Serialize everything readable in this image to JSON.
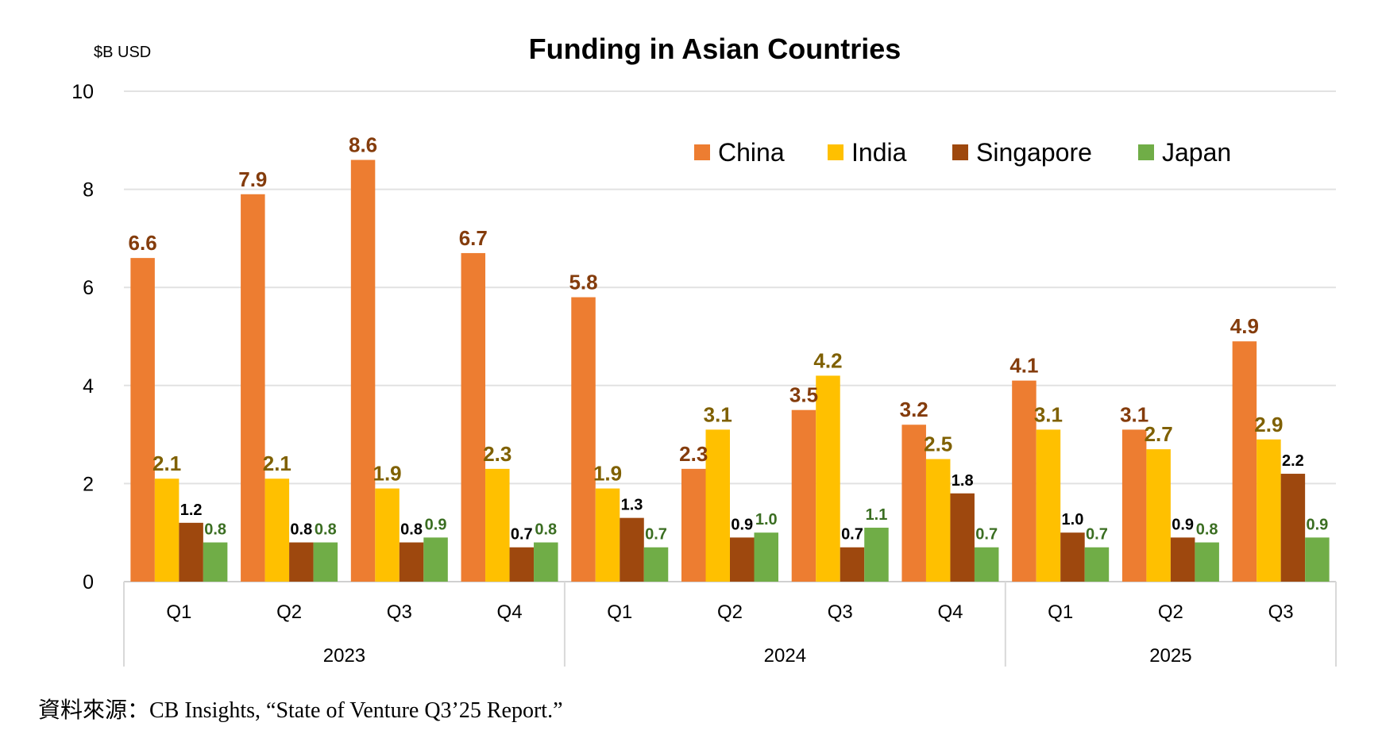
{
  "chart_data": {
    "type": "bar",
    "title": "Funding in Asian Countries",
    "ylabel": "$B USD",
    "ylim": [
      0,
      10
    ],
    "yticks": [
      0,
      2,
      4,
      6,
      8,
      10
    ],
    "grid": true,
    "legend_position": "top-right",
    "categories": [
      {
        "quarter": "Q1",
        "year": "2023"
      },
      {
        "quarter": "Q2",
        "year": "2023"
      },
      {
        "quarter": "Q3",
        "year": "2023"
      },
      {
        "quarter": "Q4",
        "year": "2023"
      },
      {
        "quarter": "Q1",
        "year": "2024"
      },
      {
        "quarter": "Q2",
        "year": "2024"
      },
      {
        "quarter": "Q3",
        "year": "2024"
      },
      {
        "quarter": "Q4",
        "year": "2024"
      },
      {
        "quarter": "Q1",
        "year": "2025"
      },
      {
        "quarter": "Q2",
        "year": "2025"
      },
      {
        "quarter": "Q3",
        "year": "2025"
      }
    ],
    "years": [
      "2023",
      "2024",
      "2025"
    ],
    "series": [
      {
        "name": "China",
        "color": "#ED7D31",
        "label_color": "#843C0C",
        "values": [
          6.6,
          7.9,
          8.6,
          6.7,
          5.8,
          2.3,
          3.5,
          3.2,
          4.1,
          3.1,
          4.9
        ]
      },
      {
        "name": "India",
        "color": "#FFC000",
        "label_color": "#7F6000",
        "values": [
          2.1,
          2.1,
          1.9,
          2.3,
          1.9,
          3.1,
          4.2,
          2.5,
          3.1,
          2.7,
          2.9
        ]
      },
      {
        "name": "Singapore",
        "color": "#9E480E",
        "label_color": "#000000",
        "values": [
          1.2,
          0.8,
          0.8,
          0.7,
          1.3,
          0.9,
          0.7,
          1.8,
          1.0,
          0.9,
          2.2
        ]
      },
      {
        "name": "Japan",
        "color": "#70AD47",
        "label_color": "#3B6E22",
        "values": [
          0.8,
          0.8,
          0.9,
          0.8,
          0.7,
          1.0,
          1.1,
          0.7,
          0.7,
          0.8,
          0.9
        ]
      }
    ]
  },
  "source": "資料來源：CB Insights, “State of Venture Q3’25 Report.”"
}
